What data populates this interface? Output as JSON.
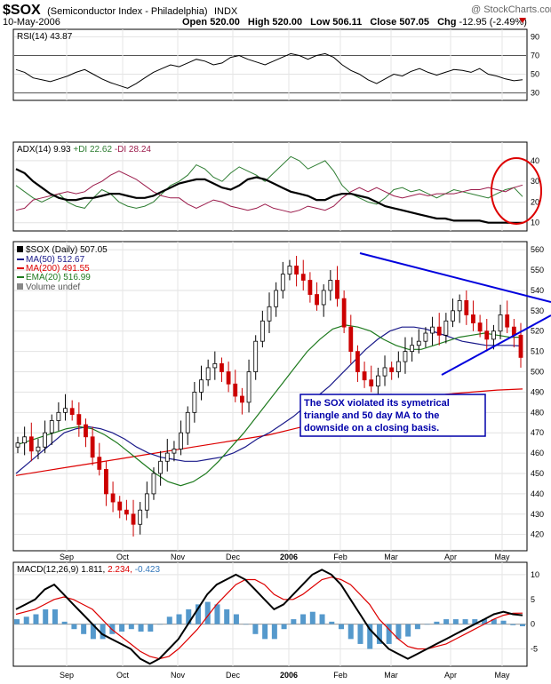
{
  "header": {
    "symbol": "$SOX",
    "name": "(Semiconductor Index - Philadelphia)",
    "exchange": "INDX",
    "date": "10-May-2006",
    "watermark": "@ StockCharts.com",
    "open_label": "Open",
    "open": "520.00",
    "high_label": "High",
    "high": "520.00",
    "low_label": "Low",
    "low": "506.11",
    "close_label": "Close",
    "close": "507.05",
    "chg_label": "Chg",
    "chg": "-12.95 (-2.49%)"
  },
  "colors": {
    "price_up": "#000000",
    "price_down": "#cc0000",
    "ma50": "#1a1a8a",
    "ma200": "#dd0000",
    "ema20": "#1e7a1e",
    "rsi": "#000000",
    "adx": "#000000",
    "plus_di": "#2e7d32",
    "minus_di": "#9b1b4b",
    "macd": "#000000",
    "signal": "#dd0000",
    "hist": "#5599cc",
    "trendline": "#0000dd",
    "annotation_border": "#0000aa",
    "circle": "#dd0000"
  },
  "chart_data": [
    {
      "type": "line",
      "panel": "RSI",
      "legend": "RSI(14) 43.87",
      "y_ticks": [
        30,
        50,
        70,
        90
      ],
      "ylim": [
        22,
        98
      ],
      "reference_lines": [
        30,
        70
      ],
      "series": [
        {
          "name": "RSI(14)",
          "values": [
            55,
            52,
            46,
            44,
            42,
            45,
            48,
            52,
            55,
            50,
            45,
            41,
            38,
            35,
            40,
            46,
            52,
            56,
            60,
            58,
            62,
            66,
            64,
            60,
            62,
            68,
            70,
            66,
            63,
            60,
            64,
            68,
            72,
            70,
            66,
            70,
            72,
            68,
            60,
            54,
            50,
            44,
            40,
            45,
            50,
            48,
            53,
            56,
            52,
            49,
            52,
            55,
            54,
            52,
            56,
            50,
            48,
            45,
            43,
            44
          ]
        }
      ]
    },
    {
      "type": "line",
      "panel": "ADX",
      "legend_prefix": "ADX(14) 9.93",
      "legend_plus": "+DI 22.62",
      "legend_minus": "-DI 28.24",
      "y_ticks": [
        10,
        20,
        30,
        40
      ],
      "ylim": [
        6,
        49
      ],
      "series": [
        {
          "name": "ADX(14)",
          "values": [
            36,
            34,
            30,
            27,
            24,
            22,
            21,
            21,
            22,
            22,
            23,
            24,
            24,
            23,
            22,
            22,
            23,
            25,
            27,
            29,
            30,
            31,
            31,
            29,
            27,
            26,
            28,
            31,
            32,
            31,
            29,
            27,
            25,
            24,
            23,
            21,
            21,
            23,
            24,
            24,
            23,
            22,
            20,
            18,
            17,
            16,
            15,
            14,
            13,
            12,
            12,
            11,
            11,
            11,
            11,
            10,
            10,
            10,
            9.9,
            9.9
          ]
        },
        {
          "name": "+DI",
          "values": [
            28,
            25,
            22,
            20,
            22,
            24,
            20,
            18,
            17,
            22,
            26,
            24,
            20,
            18,
            17,
            18,
            20,
            24,
            28,
            30,
            33,
            38,
            36,
            32,
            30,
            34,
            37,
            35,
            33,
            30,
            34,
            38,
            42,
            40,
            36,
            38,
            40,
            35,
            28,
            24,
            22,
            20,
            19,
            22,
            26,
            27,
            25,
            26,
            24,
            22,
            24,
            26,
            25,
            24,
            23,
            22,
            24,
            26,
            27,
            22.62
          ]
        },
        {
          "name": "-DI",
          "values": [
            16,
            17,
            21,
            22,
            23,
            24,
            25,
            24,
            25,
            28,
            30,
            33,
            35,
            33,
            31,
            28,
            25,
            23,
            22,
            22,
            19,
            17,
            19,
            21,
            20,
            18,
            17,
            16,
            17,
            19,
            17,
            16,
            15,
            16,
            18,
            17,
            16,
            18,
            22,
            25,
            27,
            25,
            27,
            25,
            23,
            22,
            23,
            24,
            23,
            24,
            24,
            24,
            25,
            26,
            26,
            27,
            26,
            25,
            27,
            28.24
          ]
        }
      ]
    },
    {
      "type": "line",
      "panel": "Price",
      "legend_price": "$SOX (Daily) 507.05",
      "legend_ma50": "MA(50) 512.67",
      "legend_ma200": "MA(200) 491.55",
      "legend_ema20": "EMA(20) 516.99",
      "legend_volume": "Volume undef",
      "y_ticks": [
        420,
        430,
        440,
        450,
        460,
        470,
        480,
        490,
        500,
        510,
        520,
        530,
        540,
        550,
        560
      ],
      "ylim": [
        412,
        564
      ],
      "series": [
        {
          "name": "$SOX (Daily)",
          "values": [
            465,
            468,
            461,
            463,
            470,
            476,
            480,
            482,
            479,
            474,
            468,
            458,
            452,
            440,
            436,
            432,
            430,
            425,
            432,
            440,
            450,
            456,
            460,
            462,
            470,
            480,
            490,
            496,
            502,
            504,
            500,
            494,
            488,
            485,
            500,
            515,
            525,
            532,
            540,
            548,
            552,
            548,
            545,
            538,
            533,
            540,
            545,
            536,
            522,
            510,
            500,
            496,
            493,
            498,
            502,
            500,
            505,
            510,
            513,
            515,
            519,
            522,
            518,
            525,
            530,
            535,
            528,
            524,
            520,
            516,
            520,
            528,
            522,
            518,
            507.05
          ]
        },
        {
          "name": "MA(50)",
          "values": [
            450,
            455,
            460,
            465,
            470,
            472,
            473,
            472,
            470,
            467,
            463,
            460,
            458,
            457,
            456,
            456,
            457,
            458,
            460,
            463,
            467,
            470,
            474,
            478,
            483,
            488,
            493,
            499,
            505,
            511,
            516,
            520,
            522,
            522,
            521,
            519,
            517,
            515,
            514,
            513,
            513,
            513,
            512.67
          ]
        },
        {
          "name": "MA(200)",
          "values": [
            449,
            451,
            453,
            455,
            457,
            459,
            461,
            463,
            465,
            467,
            469,
            472,
            475,
            478,
            481,
            484,
            487,
            489,
            490,
            491,
            491.55
          ]
        },
        {
          "name": "EMA(20)",
          "values": [
            464,
            466,
            468,
            470,
            472,
            473,
            472,
            469,
            465,
            460,
            455,
            450,
            446,
            444,
            446,
            450,
            456,
            463,
            470,
            478,
            486,
            494,
            502,
            510,
            516,
            521,
            523,
            522,
            520,
            516,
            513,
            511,
            511,
            513,
            515,
            517,
            518,
            519,
            518,
            517,
            516.99
          ]
        }
      ]
    },
    {
      "type": "bar",
      "panel": "MACD",
      "legend_prefix": "MACD(12,26,9) 1.811,",
      "legend_signal": "2.234,",
      "legend_hist": "-0.423",
      "y_ticks": [
        -5,
        0,
        5,
        10
      ],
      "ylim": [
        -8.5,
        12.5
      ],
      "series": [
        {
          "name": "MACD(12,26,9)",
          "values": [
            3,
            4,
            5,
            7,
            8,
            6,
            4,
            2,
            0,
            -2,
            -3,
            -4,
            -5,
            -7,
            -8,
            -7,
            -5,
            -3,
            0,
            3,
            6,
            8,
            9,
            10,
            9,
            7,
            5,
            3,
            4,
            6,
            8,
            10,
            11,
            10,
            8,
            5,
            2,
            -1,
            -3,
            -5,
            -6,
            -7,
            -6,
            -5,
            -4,
            -3,
            -2,
            -1,
            0,
            1,
            2,
            2.5,
            2,
            1.811
          ]
        },
        {
          "name": "Signal",
          "values": [
            2,
            2.5,
            3,
            4,
            5,
            5.5,
            5,
            4,
            3,
            1,
            -1,
            -2.5,
            -4,
            -5.5,
            -6.5,
            -7,
            -6.5,
            -5,
            -3,
            -1,
            1.5,
            4,
            6,
            8,
            9,
            9,
            8,
            6,
            5,
            5,
            6,
            7.5,
            9,
            9.5,
            9,
            8,
            6,
            4,
            1,
            -1,
            -3,
            -4.5,
            -5,
            -5,
            -4.5,
            -4,
            -3,
            -2,
            -1,
            0,
            1,
            1.8,
            2.2,
            2.234
          ]
        },
        {
          "name": "Histogram",
          "values": [
            1,
            1.5,
            2,
            3,
            3,
            0.5,
            -1,
            -2,
            -3,
            -3,
            -2,
            -1.5,
            -1,
            -1.5,
            -1.5,
            0,
            1.5,
            2,
            3,
            4,
            4.5,
            4,
            3,
            2,
            0,
            -2,
            -3,
            -3,
            -1,
            1,
            2,
            2.5,
            2,
            0.5,
            -1,
            -3,
            -4,
            -5,
            -4,
            -4,
            -3,
            -2.5,
            -1,
            0,
            0.5,
            1,
            1,
            1,
            1,
            1,
            1,
            0.7,
            -0.2,
            -0.423
          ]
        }
      ]
    }
  ],
  "x_axis": {
    "months": [
      {
        "label": "Sep",
        "bold": false
      },
      {
        "label": "Oct",
        "bold": false
      },
      {
        "label": "Nov",
        "bold": false
      },
      {
        "label": "Dec",
        "bold": false
      },
      {
        "label": "2006",
        "bold": true
      },
      {
        "label": "Feb",
        "bold": false
      },
      {
        "label": "Mar",
        "bold": false
      },
      {
        "label": "Apr",
        "bold": false
      },
      {
        "label": "May",
        "bold": false
      }
    ]
  },
  "annotation": {
    "text_line1": "The SOX violated its symetrical",
    "text_line2": "triangle and 50 day MA to the",
    "text_line3": "downside on a closing basis."
  }
}
